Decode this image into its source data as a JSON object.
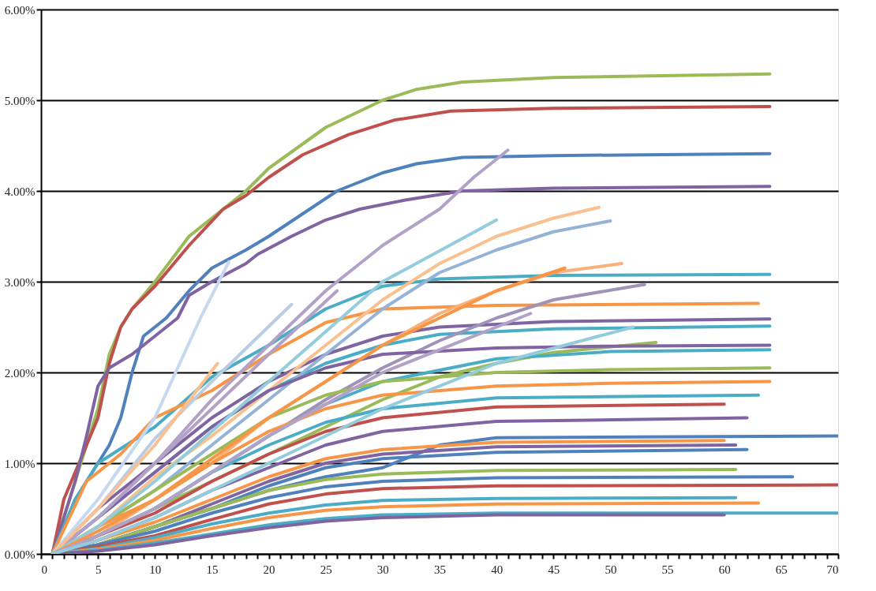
{
  "chart_data": {
    "type": "line",
    "xlim": [
      0,
      70
    ],
    "ylim": [
      0,
      6
    ],
    "xticks": [
      0,
      {
        "value": 1,
        "label": null
      },
      {
        "value": 2,
        "label": null
      },
      {
        "value": 3,
        "label": null
      },
      {
        "value": 4,
        "label": null
      },
      5,
      {
        "value": 6,
        "label": null
      },
      {
        "value": 7,
        "label": null
      },
      {
        "value": 8,
        "label": null
      },
      {
        "value": 9,
        "label": null
      },
      10,
      {
        "value": 11,
        "label": null
      },
      {
        "value": 12,
        "label": null
      },
      {
        "value": 13,
        "label": null
      },
      {
        "value": 14,
        "label": null
      },
      15,
      {
        "value": 16,
        "label": null
      },
      {
        "value": 17,
        "label": null
      },
      {
        "value": 18,
        "label": null
      },
      {
        "value": 19,
        "label": null
      },
      20,
      {
        "value": 21,
        "label": null
      },
      {
        "value": 22,
        "label": null
      },
      {
        "value": 23,
        "label": null
      },
      {
        "value": 24,
        "label": null
      },
      25,
      {
        "value": 26,
        "label": null
      },
      {
        "value": 27,
        "label": null
      },
      {
        "value": 28,
        "label": null
      },
      {
        "value": 29,
        "label": null
      },
      30,
      {
        "value": 31,
        "label": null
      },
      {
        "value": 32,
        "label": null
      },
      {
        "value": 33,
        "label": null
      },
      {
        "value": 34,
        "label": null
      },
      35,
      {
        "value": 36,
        "label": null
      },
      {
        "value": 37,
        "label": null
      },
      {
        "value": 38,
        "label": null
      },
      {
        "value": 39,
        "label": null
      },
      40,
      {
        "value": 41,
        "label": null
      },
      {
        "value": 42,
        "label": null
      },
      {
        "value": 43,
        "label": null
      },
      {
        "value": 44,
        "label": null
      },
      45,
      {
        "value": 46,
        "label": null
      },
      {
        "value": 47,
        "label": null
      },
      {
        "value": 48,
        "label": null
      },
      {
        "value": 49,
        "label": null
      },
      50,
      {
        "value": 51,
        "label": null
      },
      {
        "value": 52,
        "label": null
      },
      {
        "value": 53,
        "label": null
      },
      {
        "value": 54,
        "label": null
      },
      55,
      {
        "value": 56,
        "label": null
      },
      {
        "value": 57,
        "label": null
      },
      {
        "value": 58,
        "label": null
      },
      {
        "value": 59,
        "label": null
      },
      60,
      {
        "value": 61,
        "label": null
      },
      {
        "value": 62,
        "label": null
      },
      {
        "value": 63,
        "label": null
      },
      {
        "value": 64,
        "label": null
      },
      65,
      {
        "value": 66,
        "label": null
      },
      {
        "value": 67,
        "label": null
      },
      {
        "value": 68,
        "label": null
      },
      {
        "value": 69,
        "label": null
      },
      70
    ],
    "yticks": [
      {
        "value": 0,
        "label": "0.00%"
      },
      {
        "value": 1,
        "label": "1.00%"
      },
      {
        "value": 2,
        "label": "2.00%"
      },
      {
        "value": 3,
        "label": "3.00%"
      },
      {
        "value": 4,
        "label": "4.00%"
      },
      {
        "value": 5,
        "label": "5.00%"
      },
      {
        "value": 6,
        "label": "6.00%"
      }
    ],
    "grid": "y",
    "legend": false,
    "marker": "none",
    "line_style": "solid",
    "series": [
      {
        "color": "#9bbb59",
        "x": [
          1,
          3,
          5,
          6,
          7,
          8,
          10,
          13,
          15,
          18,
          20,
          25,
          30,
          33,
          37,
          45,
          64
        ],
        "values": [
          0,
          0.8,
          1.6,
          2.2,
          2.5,
          2.7,
          3.0,
          3.5,
          3.7,
          4.0,
          4.25,
          4.7,
          5.0,
          5.12,
          5.2,
          5.25,
          5.29
        ]
      },
      {
        "color": "#c0504d",
        "x": [
          1,
          2,
          3,
          5,
          6,
          7,
          8,
          10,
          13,
          16,
          18,
          20,
          23,
          27,
          31,
          36,
          45,
          64
        ],
        "values": [
          0,
          0.6,
          0.9,
          1.5,
          2.1,
          2.5,
          2.7,
          2.95,
          3.4,
          3.8,
          3.95,
          4.15,
          4.4,
          4.62,
          4.78,
          4.88,
          4.91,
          4.93
        ]
      },
      {
        "color": "#4f81bd",
        "x": [
          1,
          3,
          5,
          6,
          7,
          8,
          9,
          11,
          13,
          15,
          18,
          20,
          23,
          26,
          30,
          33,
          37,
          45,
          64
        ],
        "values": [
          0,
          0.6,
          1.0,
          1.2,
          1.5,
          2.0,
          2.4,
          2.6,
          2.9,
          3.15,
          3.35,
          3.5,
          3.75,
          4.0,
          4.2,
          4.3,
          4.37,
          4.39,
          4.41
        ]
      },
      {
        "color": "#8064a2",
        "x": [
          1,
          3,
          4,
          5,
          6,
          8,
          10,
          12,
          13,
          15,
          18,
          19,
          22,
          25,
          28,
          32,
          37,
          45,
          64
        ],
        "values": [
          0,
          0.8,
          1.3,
          1.85,
          2.05,
          2.2,
          2.4,
          2.6,
          2.85,
          3.0,
          3.2,
          3.3,
          3.5,
          3.68,
          3.8,
          3.9,
          4.0,
          4.03,
          4.05
        ]
      },
      {
        "color": "#4bacc6",
        "x": [
          1,
          3,
          5,
          10,
          15,
          20,
          25,
          30,
          35,
          45,
          64
        ],
        "values": [
          0,
          0.6,
          1.0,
          1.4,
          1.95,
          2.3,
          2.7,
          2.95,
          3.03,
          3.07,
          3.08
        ]
      },
      {
        "color": "#f79646",
        "x": [
          1,
          4,
          7,
          10,
          15,
          20,
          25,
          30,
          40,
          63
        ],
        "values": [
          0,
          0.8,
          1.1,
          1.5,
          1.8,
          2.2,
          2.55,
          2.7,
          2.74,
          2.76
        ]
      },
      {
        "color": "#8064a2",
        "x": [
          1,
          5,
          10,
          15,
          20,
          25,
          30,
          35,
          45,
          64
        ],
        "values": [
          0,
          0.5,
          1.0,
          1.5,
          1.9,
          2.2,
          2.4,
          2.5,
          2.56,
          2.59
        ]
      },
      {
        "color": "#4bacc6",
        "x": [
          1,
          5,
          10,
          15,
          20,
          25,
          30,
          35,
          45,
          64
        ],
        "values": [
          0,
          0.4,
          0.9,
          1.4,
          1.8,
          2.1,
          2.3,
          2.42,
          2.48,
          2.51
        ]
      },
      {
        "color": "#b3a2c7",
        "x": [
          1,
          5,
          10,
          15,
          20,
          25,
          30,
          35,
          38,
          41
        ],
        "values": [
          0,
          0.4,
          1.0,
          1.7,
          2.3,
          2.9,
          3.4,
          3.8,
          4.15,
          4.45
        ]
      },
      {
        "color": "#c6d9f1",
        "x": [
          1,
          5,
          10,
          14,
          16.5
        ],
        "values": [
          0,
          0.6,
          1.5,
          2.6,
          3.22
        ]
      },
      {
        "color": "#fac090",
        "x": [
          1,
          5,
          10,
          15,
          20,
          25,
          30,
          35,
          40,
          45,
          49
        ],
        "values": [
          0,
          0.3,
          0.85,
          1.3,
          1.8,
          2.3,
          2.8,
          3.2,
          3.5,
          3.7,
          3.82
        ]
      },
      {
        "color": "#95b3d7",
        "x": [
          1,
          5,
          10,
          15,
          20,
          25,
          30,
          35,
          40,
          45,
          50
        ],
        "values": [
          0,
          0.3,
          0.7,
          1.2,
          1.7,
          2.2,
          2.7,
          3.1,
          3.35,
          3.55,
          3.67
        ]
      },
      {
        "color": "#fab07a",
        "x": [
          1,
          5,
          10,
          15,
          20,
          25,
          30,
          35,
          40,
          45,
          51
        ],
        "values": [
          0,
          0.2,
          0.6,
          1.0,
          1.5,
          1.9,
          2.3,
          2.65,
          2.9,
          3.1,
          3.2
        ]
      },
      {
        "color": "#a093b8",
        "x": [
          1,
          5,
          10,
          15,
          20,
          25,
          30,
          35,
          40,
          45,
          53
        ],
        "values": [
          0,
          0.2,
          0.5,
          0.9,
          1.3,
          1.7,
          2.05,
          2.35,
          2.6,
          2.8,
          2.97
        ]
      },
      {
        "color": "#9bbb59",
        "x": [
          1,
          5,
          10,
          15,
          20,
          25,
          30,
          35,
          40,
          45,
          54
        ],
        "values": [
          0,
          0.2,
          0.5,
          0.8,
          1.1,
          1.4,
          1.7,
          1.95,
          2.1,
          2.22,
          2.33
        ]
      },
      {
        "color": "#4bacc6",
        "x": [
          1,
          5,
          10,
          15,
          20,
          25,
          30,
          40,
          50,
          64
        ],
        "values": [
          0,
          0.2,
          0.5,
          0.9,
          1.3,
          1.65,
          1.9,
          2.15,
          2.23,
          2.25
        ]
      },
      {
        "color": "#8064a2",
        "x": [
          1,
          5,
          10,
          15,
          20,
          25,
          30,
          40,
          50,
          64
        ],
        "values": [
          0,
          0.4,
          0.9,
          1.4,
          1.8,
          2.05,
          2.2,
          2.27,
          2.29,
          2.3
        ]
      },
      {
        "color": "#9bbb59",
        "x": [
          1,
          5,
          10,
          15,
          20,
          25,
          30,
          40,
          50,
          64
        ],
        "values": [
          0,
          0.3,
          0.7,
          1.1,
          1.5,
          1.75,
          1.9,
          2.0,
          2.03,
          2.05
        ]
      },
      {
        "color": "#f79646",
        "x": [
          1,
          5,
          10,
          15,
          20,
          25,
          30,
          40,
          50,
          64
        ],
        "values": [
          0,
          0.3,
          0.6,
          1.0,
          1.35,
          1.6,
          1.75,
          1.85,
          1.88,
          1.9
        ]
      },
      {
        "color": "#4bacc6",
        "x": [
          1,
          5,
          10,
          15,
          20,
          25,
          30,
          40,
          63
        ],
        "values": [
          0,
          0.2,
          0.5,
          0.9,
          1.2,
          1.45,
          1.6,
          1.72,
          1.75
        ]
      },
      {
        "color": "#c0504d",
        "x": [
          1,
          5,
          10,
          15,
          20,
          25,
          30,
          40,
          60
        ],
        "values": [
          0,
          0.2,
          0.45,
          0.8,
          1.1,
          1.35,
          1.5,
          1.62,
          1.65
        ]
      },
      {
        "color": "#8064a2",
        "x": [
          1,
          5,
          10,
          15,
          20,
          25,
          30,
          40,
          62
        ],
        "values": [
          0,
          0.15,
          0.4,
          0.7,
          0.95,
          1.2,
          1.35,
          1.46,
          1.5
        ]
      },
      {
        "color": "#4f81bd",
        "x": [
          1,
          5,
          10,
          15,
          20,
          25,
          30,
          35,
          40,
          70
        ],
        "values": [
          0,
          0.1,
          0.3,
          0.5,
          0.7,
          0.85,
          0.95,
          1.2,
          1.28,
          1.3
        ]
      },
      {
        "color": "#f79646",
        "x": [
          1,
          5,
          10,
          15,
          20,
          25,
          30,
          40,
          60
        ],
        "values": [
          0,
          0.15,
          0.35,
          0.6,
          0.85,
          1.05,
          1.15,
          1.23,
          1.25
        ]
      },
      {
        "color": "#8064a2",
        "x": [
          1,
          5,
          10,
          15,
          20,
          25,
          30,
          40,
          61
        ],
        "values": [
          0,
          0.1,
          0.3,
          0.55,
          0.8,
          1.0,
          1.1,
          1.18,
          1.2
        ]
      },
      {
        "color": "#4f81bd",
        "x": [
          1,
          5,
          10,
          15,
          20,
          25,
          30,
          40,
          62
        ],
        "values": [
          0,
          0.1,
          0.3,
          0.5,
          0.75,
          0.95,
          1.05,
          1.12,
          1.15
        ]
      },
      {
        "color": "#9bbb59",
        "x": [
          1,
          5,
          10,
          15,
          20,
          25,
          30,
          40,
          61
        ],
        "values": [
          0,
          0.1,
          0.3,
          0.5,
          0.7,
          0.82,
          0.88,
          0.92,
          0.93
        ]
      },
      {
        "color": "#4f81bd",
        "x": [
          1,
          5,
          10,
          15,
          20,
          25,
          30,
          40,
          66
        ],
        "values": [
          0,
          0.1,
          0.25,
          0.45,
          0.62,
          0.74,
          0.8,
          0.84,
          0.85
        ]
      },
      {
        "color": "#c0504d",
        "x": [
          1,
          5,
          10,
          15,
          20,
          25,
          30,
          40,
          70
        ],
        "values": [
          0,
          0.08,
          0.2,
          0.38,
          0.55,
          0.66,
          0.72,
          0.75,
          0.76
        ]
      },
      {
        "color": "#4bacc6",
        "x": [
          1,
          5,
          10,
          15,
          20,
          25,
          30,
          40,
          61
        ],
        "values": [
          0,
          0.06,
          0.18,
          0.33,
          0.45,
          0.54,
          0.59,
          0.61,
          0.62
        ]
      },
      {
        "color": "#f79646",
        "x": [
          1,
          5,
          10,
          15,
          20,
          25,
          30,
          40,
          63
        ],
        "values": [
          0,
          0.05,
          0.15,
          0.28,
          0.4,
          0.48,
          0.52,
          0.55,
          0.56
        ]
      },
      {
        "color": "#4bacc6",
        "x": [
          1,
          5,
          10,
          15,
          20,
          25,
          30,
          40,
          70
        ],
        "values": [
          0,
          0.04,
          0.12,
          0.22,
          0.32,
          0.39,
          0.43,
          0.45,
          0.45
        ]
      },
      {
        "color": "#8064a2",
        "x": [
          1,
          5,
          10,
          15,
          20,
          25,
          30,
          40,
          60
        ],
        "values": [
          0,
          0.03,
          0.1,
          0.2,
          0.29,
          0.36,
          0.4,
          0.43,
          0.43
        ]
      },
      {
        "color": "#b9cde5",
        "x": [
          1,
          5,
          10,
          15,
          22
        ],
        "values": [
          0,
          0.5,
          1.27,
          1.9,
          2.75
        ]
      },
      {
        "color": "#b3a2c7",
        "x": [
          1,
          5,
          10,
          15,
          20,
          26
        ],
        "values": [
          0,
          0.4,
          1.0,
          1.6,
          2.2,
          2.9
        ]
      },
      {
        "color": "#fac090",
        "x": [
          1,
          5,
          10,
          15.5
        ],
        "values": [
          0,
          0.5,
          1.2,
          2.1
        ]
      },
      {
        "color": "#93cddd",
        "x": [
          1,
          5,
          10,
          20,
          30,
          40
        ],
        "values": [
          0,
          0.3,
          0.8,
          1.9,
          3.0,
          3.68
        ]
      },
      {
        "color": "#f79646",
        "x": [
          1,
          5,
          10,
          20,
          30,
          40,
          46
        ],
        "values": [
          0,
          0.25,
          0.6,
          1.5,
          2.3,
          2.9,
          3.15
        ]
      },
      {
        "color": "#b3a2c7",
        "x": [
          1,
          5,
          10,
          20,
          30,
          43
        ],
        "values": [
          0,
          0.2,
          0.5,
          1.3,
          2.0,
          2.65
        ]
      },
      {
        "color": "#93cddd",
        "x": [
          1,
          5,
          10,
          20,
          30,
          40,
          52
        ],
        "values": [
          0,
          0.15,
          0.4,
          1.0,
          1.6,
          2.1,
          2.5
        ]
      }
    ]
  }
}
